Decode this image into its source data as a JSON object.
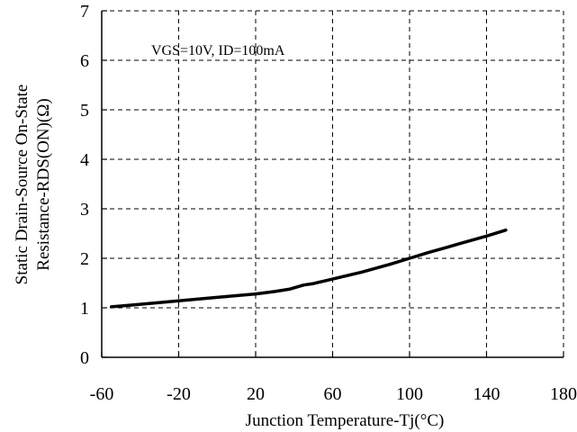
{
  "chart_data": {
    "type": "line",
    "xlabel": "Junction Temperature-Tj(°C)",
    "ylabel_line1": "Static Drain-Source On-State",
    "ylabel_line2": "Resistance-RDS(ON)(Ω)",
    "annotation": "VGS=10V, ID=100mA",
    "xlim": [
      -60,
      180
    ],
    "ylim": [
      0,
      7
    ],
    "x_ticks": [
      "-60",
      "-20",
      "20",
      "60",
      "100",
      "140",
      "180"
    ],
    "y_ticks": [
      "0",
      "1",
      "2",
      "3",
      "4",
      "5",
      "6",
      "7"
    ],
    "grid": "dashed",
    "series": [
      {
        "x": [
          -55,
          -40,
          -20,
          0,
          20,
          30,
          38,
          45,
          50,
          60,
          75,
          90,
          100,
          110,
          120,
          130,
          140,
          150
        ],
        "y": [
          1.02,
          1.07,
          1.14,
          1.21,
          1.28,
          1.33,
          1.38,
          1.46,
          1.49,
          1.58,
          1.72,
          1.88,
          2.0,
          2.12,
          2.23,
          2.34,
          2.45,
          2.57
        ],
        "color": "#000000"
      }
    ]
  }
}
